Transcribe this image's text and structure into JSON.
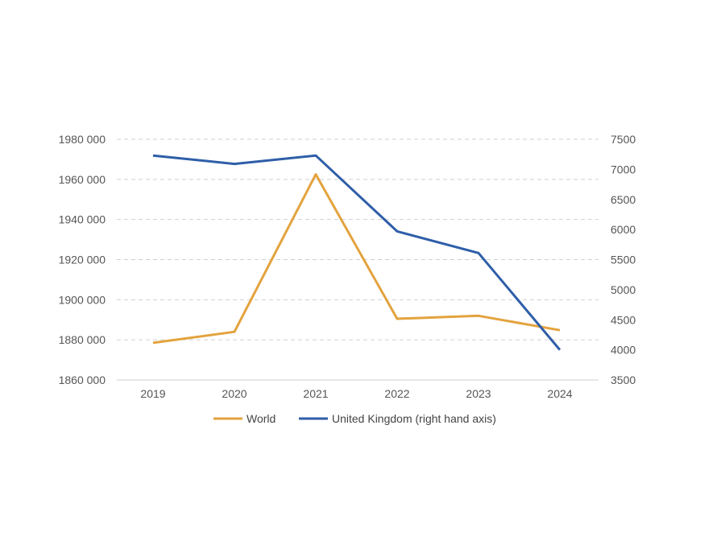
{
  "chart_data": {
    "type": "line",
    "title": "",
    "xlabel": "",
    "ylabel": "",
    "y2label": "",
    "x": [
      "2019",
      "2020",
      "2021",
      "2022",
      "2023",
      "2024"
    ],
    "ylim": [
      1860000,
      1980000
    ],
    "yticks": [
      1860000,
      1880000,
      1900000,
      1920000,
      1940000,
      1960000,
      1980000
    ],
    "ytick_labels": [
      "1860 000",
      "1880 000",
      "1900 000",
      "1920 000",
      "1940 000",
      "1960 000",
      "1980 000"
    ],
    "y2lim": [
      3500,
      7500
    ],
    "y2ticks": [
      3500,
      4000,
      4500,
      5000,
      5500,
      6000,
      6500,
      7000,
      7500
    ],
    "y2tick_labels": [
      "3500",
      "4000",
      "4500",
      "5000",
      "5500",
      "6000",
      "6500",
      "7000",
      "7500"
    ],
    "grid": true,
    "legend_position": "bottom",
    "series": [
      {
        "name": "World",
        "axis": "left",
        "color": "#E3A33E",
        "values": [
          1878500,
          1884000,
          1962500,
          1890500,
          1892000,
          1884800
        ]
      },
      {
        "name": "United Kingdom (right hand axis)",
        "axis": "right",
        "color": "#2E5EA8",
        "values": [
          7230,
          7090,
          7230,
          5970,
          5610,
          4000
        ]
      }
    ]
  }
}
